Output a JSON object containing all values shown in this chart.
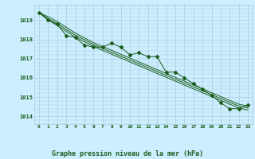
{
  "title": "Graphe pression niveau de la mer (hPa)",
  "background_color": "#cceeff",
  "grid_color": "#aaccdd",
  "line_color": "#1a5c1a",
  "x_ticks": [
    0,
    1,
    2,
    3,
    4,
    5,
    6,
    7,
    8,
    9,
    10,
    11,
    12,
    13,
    14,
    15,
    16,
    17,
    18,
    19,
    20,
    21,
    22,
    23
  ],
  "ylim": [
    1013.6,
    1019.8
  ],
  "yticks": [
    1014,
    1015,
    1016,
    1017,
    1018,
    1019
  ],
  "series": {
    "main": [
      1019.4,
      1019.0,
      1018.8,
      1018.2,
      1018.1,
      1017.7,
      1017.6,
      1017.6,
      1017.8,
      1017.6,
      1017.2,
      1017.3,
      1017.1,
      1017.1,
      1016.3,
      1016.3,
      1016.0,
      1015.7,
      1015.4,
      1015.1,
      1014.7,
      1014.4,
      1014.4,
      1014.6
    ],
    "smooth1": [
      1019.4,
      1019.08,
      1018.82,
      1018.52,
      1018.22,
      1017.98,
      1017.73,
      1017.53,
      1017.33,
      1017.13,
      1016.93,
      1016.73,
      1016.53,
      1016.33,
      1016.13,
      1015.93,
      1015.73,
      1015.53,
      1015.33,
      1015.13,
      1014.93,
      1014.73,
      1014.53,
      1014.43
    ],
    "smooth2": [
      1019.4,
      1019.18,
      1018.93,
      1018.63,
      1018.33,
      1018.08,
      1017.83,
      1017.63,
      1017.43,
      1017.23,
      1017.03,
      1016.83,
      1016.63,
      1016.43,
      1016.23,
      1016.03,
      1015.83,
      1015.63,
      1015.43,
      1015.23,
      1015.03,
      1014.83,
      1014.63,
      1014.53
    ],
    "smooth3": [
      1019.4,
      1019.02,
      1018.72,
      1018.42,
      1018.12,
      1017.88,
      1017.63,
      1017.43,
      1017.23,
      1017.03,
      1016.83,
      1016.63,
      1016.43,
      1016.23,
      1016.03,
      1015.83,
      1015.63,
      1015.43,
      1015.23,
      1015.03,
      1014.83,
      1014.63,
      1014.43,
      1014.33
    ]
  }
}
